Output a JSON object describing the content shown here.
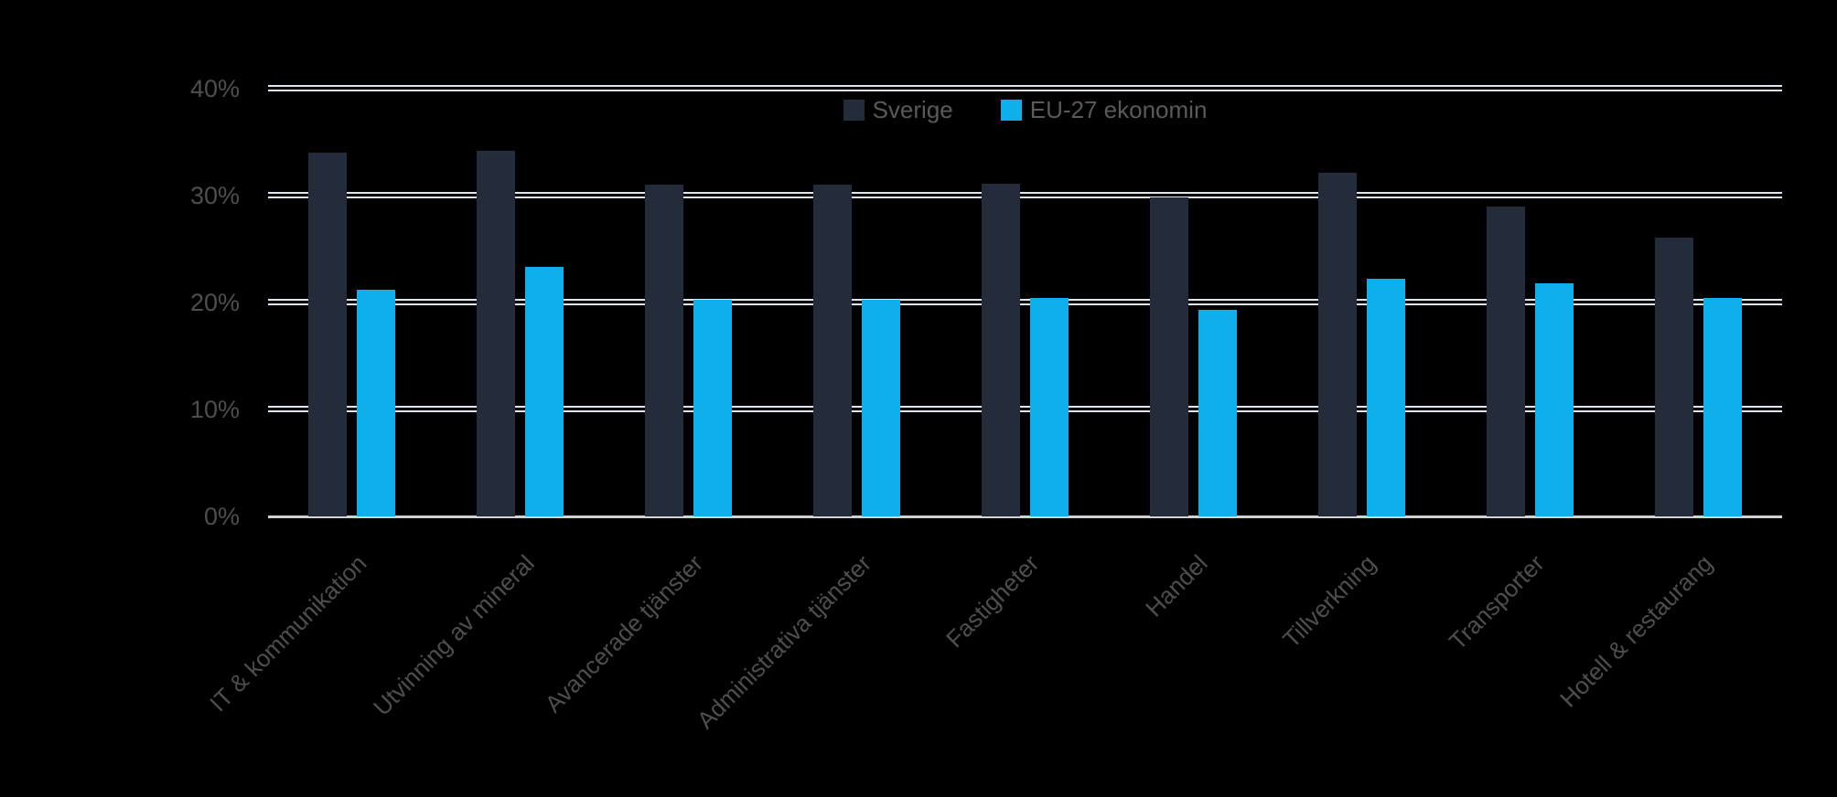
{
  "chart_data": {
    "type": "bar",
    "title": "",
    "xlabel": "",
    "ylabel": "",
    "categories": [
      "IT & kommunikation",
      "Utvinning av mineral",
      "Avancerade tjänster",
      "Administrativa tjänster",
      "Fastigheter",
      "Handel",
      "Tillverkning",
      "Transporter",
      "Hotell & restaurang"
    ],
    "series": [
      {
        "name": "Sverige",
        "color": "#242c3b",
        "values": [
          34,
          34.2,
          31,
          31,
          31.1,
          29.8,
          32.1,
          29,
          26.1
        ]
      },
      {
        "name": "EU-27 ekonomin",
        "color": "#0fafec",
        "values": [
          21.2,
          23.3,
          20.3,
          20.3,
          20.4,
          19.3,
          22.2,
          21.8,
          20.4
        ]
      }
    ],
    "ylim": [
      0,
      40
    ],
    "ytick_values": [
      0,
      10,
      20,
      30,
      40
    ],
    "ytick_labels": [
      "0%",
      "10%",
      "20%",
      "30%",
      "40%"
    ],
    "grid": "horizontal, double white lines; solid light baseline at 0%",
    "legend_position": "top-center inside plot",
    "x_label_rotation_deg": 45
  },
  "colors": {
    "background": "#000000",
    "gridline": "#dde6f2",
    "baseline": "#d2d2d2",
    "axis_text": "#4e4e4e",
    "legend_text": "#5a5a5a"
  }
}
